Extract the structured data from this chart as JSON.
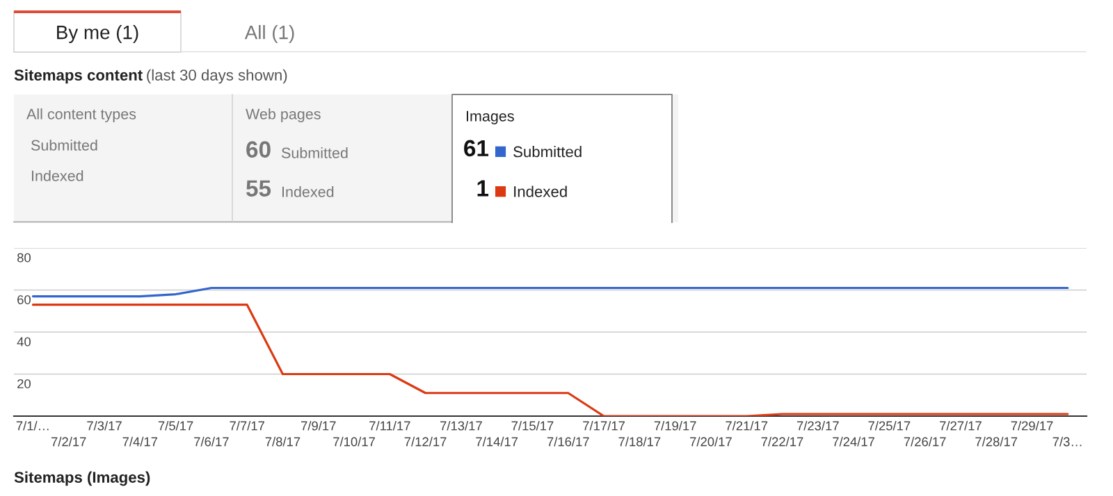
{
  "chart_data": {
    "type": "line",
    "title": "Sitemaps content",
    "subtitle": "(last 30 days shown)",
    "categories": [
      "7/1/…",
      "7/2/17",
      "7/3/17",
      "7/4/17",
      "7/5/17",
      "7/6/17",
      "7/7/17",
      "7/8/17",
      "7/9/17",
      "7/10/17",
      "7/11/17",
      "7/12/17",
      "7/13/17",
      "7/14/17",
      "7/15/17",
      "7/16/17",
      "7/17/17",
      "7/18/17",
      "7/19/17",
      "7/20/17",
      "7/21/17",
      "7/22/17",
      "7/23/17",
      "7/24/17",
      "7/25/17",
      "7/26/17",
      "7/27/17",
      "7/28/17",
      "7/29/17",
      "7/3…"
    ],
    "series": [
      {
        "name": "Submitted",
        "color": "#3366cc",
        "values": [
          57,
          57,
          57,
          57,
          58,
          61,
          61,
          61,
          61,
          61,
          61,
          61,
          61,
          61,
          61,
          61,
          61,
          61,
          61,
          61,
          61,
          61,
          61,
          61,
          61,
          61,
          61,
          61,
          61,
          61
        ]
      },
      {
        "name": "Indexed",
        "color": "#dc3912",
        "values": [
          53,
          53,
          53,
          53,
          53,
          53,
          53,
          20,
          20,
          20,
          20,
          11,
          11,
          11,
          11,
          11,
          0,
          0,
          0,
          0,
          0,
          1,
          1,
          1,
          1,
          1,
          1,
          1,
          1,
          1
        ]
      }
    ],
    "ylim": [
      0,
      80
    ],
    "yticks": [
      {
        "value": 0,
        "label": null
      },
      20,
      40,
      60,
      80
    ],
    "grid": "y",
    "legend": "top",
    "line_style": "solid",
    "annotations": [
      "By me (1)",
      "All (1)",
      "All content types",
      "Submitted",
      "Indexed",
      "Web pages",
      "60",
      "Submitted",
      "55",
      "Indexed",
      "Images",
      "61",
      "1",
      "Sitemaps (Images)"
    ]
  }
}
